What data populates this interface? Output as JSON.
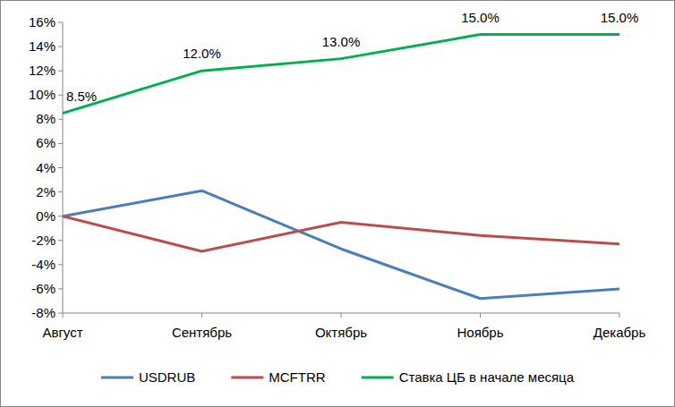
{
  "chart_data": {
    "type": "line",
    "categories": [
      "Август",
      "Сентябрь",
      "Октябрь",
      "Ноябрь",
      "Декабрь"
    ],
    "ylim": [
      -8,
      16
    ],
    "yticks": [
      {
        "value": -8,
        "label": "-8%"
      },
      {
        "value": -6,
        "label": "-6%"
      },
      {
        "value": -4,
        "label": "-4%"
      },
      {
        "value": -2,
        "label": "-2%"
      },
      {
        "value": 0,
        "label": "0%"
      },
      {
        "value": 2,
        "label": "2%"
      },
      {
        "value": 4,
        "label": "4%"
      },
      {
        "value": 6,
        "label": "6%"
      },
      {
        "value": 8,
        "label": "8%"
      },
      {
        "value": 10,
        "label": "10%"
      },
      {
        "value": 12,
        "label": "12%"
      },
      {
        "value": 14,
        "label": "14%"
      },
      {
        "value": 16,
        "label": "16%"
      }
    ],
    "grid": false,
    "legend": "bottom",
    "series": [
      {
        "name": "USDRUB",
        "color": "#4a7ebb",
        "values": [
          0,
          2.1,
          -2.7,
          -6.8,
          -6.0
        ]
      },
      {
        "name": "MCFTRR",
        "color": "#be4b48",
        "values": [
          0,
          -2.9,
          -0.5,
          -1.6,
          -2.3
        ]
      },
      {
        "name": "Ставка ЦБ в начале месяца",
        "color": "#00b050",
        "values": [
          8.5,
          12.0,
          13.0,
          15.0,
          15.0
        ],
        "data_labels": true,
        "value_labels": [
          "8.5%",
          "12.0%",
          "13.0%",
          "15.0%",
          "15.0%"
        ]
      }
    ]
  }
}
